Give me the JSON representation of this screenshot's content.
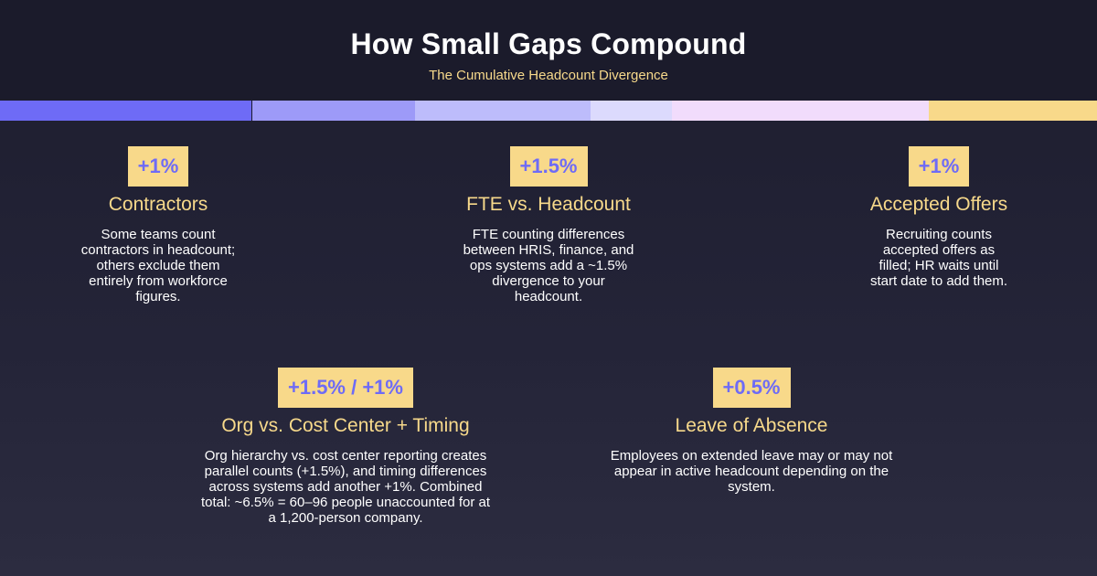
{
  "header": {
    "title": "How Small Gaps Compound",
    "subtitle": "The Cumulative Headcount Divergence"
  },
  "colors": {
    "background": "#1d1d2e",
    "accent_yellow": "#f8d98a",
    "accent_purple": "#6e6bf6"
  },
  "cards": [
    {
      "badge": "+1%",
      "title": "Contractors",
      "body": "Some teams count contractors in headcount; others exclude them entirely from workforce figures."
    },
    {
      "badge": "+1.5%",
      "title": "FTE vs. Headcount",
      "body": "FTE counting differences between HRIS, finance, and ops systems add a ~1.5% divergence to your headcount."
    },
    {
      "badge": "+1%",
      "title": "Accepted Offers",
      "body": "Recruiting counts accepted offers as filled; HR waits until start date to add them."
    },
    {
      "badge": "+1.5% / +1%",
      "title": "Org vs. Cost Center + Timing",
      "body": "Org hierarchy vs. cost center reporting creates parallel counts (+1.5%), and timing differences across systems add another +1%. Combined total: ~6.5% = 60–96 people unaccounted for at a 1,200-person company."
    },
    {
      "badge": "+0.5%",
      "title": "Leave of Absence",
      "body": "Employees on extended leave may or may not appear in active headcount depending on the system."
    }
  ]
}
